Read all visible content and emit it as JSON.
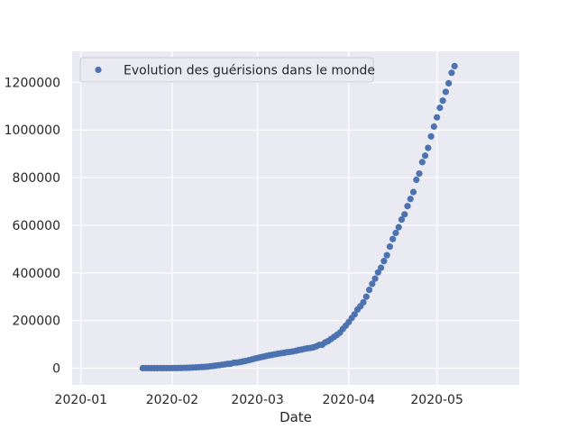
{
  "chart_data": {
    "type": "scatter",
    "title": "",
    "xlabel": "Date",
    "ylabel": "",
    "x_type": "date",
    "xlim": [
      "2019-12-29",
      "2020-05-29"
    ],
    "ylim": [
      -70000,
      1330000
    ],
    "grid": true,
    "legend_position": "top-left",
    "x_tick_labels": [
      "2020-01",
      "2020-02",
      "2020-03",
      "2020-04",
      "2020-05"
    ],
    "x_tick_dates": [
      "2020-01-01",
      "2020-02-01",
      "2020-03-01",
      "2020-04-01",
      "2020-05-01"
    ],
    "y_tick_labels": [
      "0",
      "200000",
      "400000",
      "600000",
      "800000",
      "1000000",
      "1200000"
    ],
    "y_tick_values": [
      0,
      200000,
      400000,
      600000,
      800000,
      1000000,
      1200000
    ],
    "colors": {
      "background": "#eaeaf2",
      "grid": "#ffffff",
      "marker": "#4c72b0"
    },
    "series": [
      {
        "name": "Evolution des guérisions dans le monde",
        "x": [
          "2020-01-22",
          "2020-01-23",
          "2020-01-24",
          "2020-01-25",
          "2020-01-26",
          "2020-01-27",
          "2020-01-28",
          "2020-01-29",
          "2020-01-30",
          "2020-01-31",
          "2020-02-01",
          "2020-02-02",
          "2020-02-03",
          "2020-02-04",
          "2020-02-05",
          "2020-02-06",
          "2020-02-07",
          "2020-02-08",
          "2020-02-09",
          "2020-02-10",
          "2020-02-11",
          "2020-02-12",
          "2020-02-13",
          "2020-02-14",
          "2020-02-15",
          "2020-02-16",
          "2020-02-17",
          "2020-02-18",
          "2020-02-19",
          "2020-02-20",
          "2020-02-21",
          "2020-02-22",
          "2020-02-23",
          "2020-02-24",
          "2020-02-25",
          "2020-02-26",
          "2020-02-27",
          "2020-02-28",
          "2020-02-29",
          "2020-03-01",
          "2020-03-02",
          "2020-03-03",
          "2020-03-04",
          "2020-03-05",
          "2020-03-06",
          "2020-03-07",
          "2020-03-08",
          "2020-03-09",
          "2020-03-10",
          "2020-03-11",
          "2020-03-12",
          "2020-03-13",
          "2020-03-14",
          "2020-03-15",
          "2020-03-16",
          "2020-03-17",
          "2020-03-18",
          "2020-03-19",
          "2020-03-20",
          "2020-03-21",
          "2020-03-22",
          "2020-03-23",
          "2020-03-24",
          "2020-03-25",
          "2020-03-26",
          "2020-03-27",
          "2020-03-28",
          "2020-03-29",
          "2020-03-30",
          "2020-03-31",
          "2020-04-01",
          "2020-04-02",
          "2020-04-03",
          "2020-04-04",
          "2020-04-05",
          "2020-04-06",
          "2020-04-07",
          "2020-04-08",
          "2020-04-09",
          "2020-04-10",
          "2020-04-11",
          "2020-04-12",
          "2020-04-13",
          "2020-04-14",
          "2020-04-15",
          "2020-04-16",
          "2020-04-17",
          "2020-04-18",
          "2020-04-19",
          "2020-04-20",
          "2020-04-21",
          "2020-04-22",
          "2020-04-23",
          "2020-04-24",
          "2020-04-25",
          "2020-04-26",
          "2020-04-27",
          "2020-04-28",
          "2020-04-29",
          "2020-04-30",
          "2020-05-01",
          "2020-05-02",
          "2020-05-03",
          "2020-05-04",
          "2020-05-05",
          "2020-05-06",
          "2020-05-07"
        ],
        "y": [
          28,
          30,
          36,
          39,
          52,
          61,
          107,
          126,
          143,
          222,
          284,
          472,
          623,
          852,
          1124,
          1487,
          2011,
          2616,
          3244,
          3946,
          4683,
          5150,
          6295,
          8058,
          9395,
          10865,
          12583,
          14352,
          16121,
          18177,
          18890,
          22886,
          23394,
          25227,
          27905,
          30384,
          33277,
          36711,
          39782,
          42716,
          45602,
          48228,
          51170,
          53796,
          55865,
          58358,
          60694,
          62494,
          64404,
          67003,
          68324,
          70251,
          72624,
          76034,
          78088,
          80840,
          83207,
          84854,
          87256,
          91499,
          97704,
          98351,
          107990,
          113785,
          122150,
          130915,
          139415,
          149082,
          164566,
          178034,
          193177,
          210263,
          225796,
          246152,
          260012,
          276515,
          300054,
          328661,
          353975,
          376096,
          402110,
          421722,
          449707,
          474261,
          510349,
          542107,
          567627,
          591676,
          623903,
          645738,
          680400,
          710287,
          739257,
          790786,
          817000,
          865000,
          892000,
          925000,
          973000,
          1014000,
          1053000,
          1093000,
          1123000,
          1160000,
          1196000,
          1240000,
          1268000
        ]
      }
    ]
  }
}
